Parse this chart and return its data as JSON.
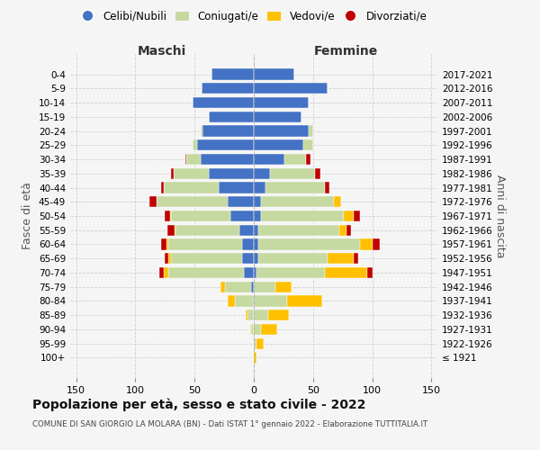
{
  "age_groups": [
    "100+",
    "95-99",
    "90-94",
    "85-89",
    "80-84",
    "75-79",
    "70-74",
    "65-69",
    "60-64",
    "55-59",
    "50-54",
    "45-49",
    "40-44",
    "35-39",
    "30-34",
    "25-29",
    "20-24",
    "15-19",
    "10-14",
    "5-9",
    "0-4"
  ],
  "birth_years": [
    "≤ 1921",
    "1922-1926",
    "1927-1931",
    "1932-1936",
    "1937-1941",
    "1942-1946",
    "1947-1951",
    "1952-1956",
    "1957-1961",
    "1962-1966",
    "1967-1971",
    "1972-1976",
    "1977-1981",
    "1982-1986",
    "1987-1991",
    "1992-1996",
    "1997-2001",
    "2002-2006",
    "2007-2011",
    "2012-2016",
    "2017-2021"
  ],
  "colors": {
    "celibe": "#4472c4",
    "coniugato": "#c5d9a0",
    "vedovo": "#ffc000",
    "divorziato": "#c00000"
  },
  "maschi": {
    "celibe": [
      0,
      0,
      0,
      0,
      1,
      2,
      8,
      10,
      10,
      12,
      20,
      22,
      30,
      38,
      45,
      48,
      43,
      38,
      52,
      44,
      36
    ],
    "coniugato": [
      0,
      0,
      2,
      5,
      15,
      22,
      64,
      60,
      62,
      54,
      50,
      60,
      46,
      30,
      12,
      4,
      2,
      0,
      0,
      0,
      0
    ],
    "vedovo": [
      0,
      0,
      1,
      2,
      6,
      4,
      4,
      2,
      2,
      1,
      1,
      0,
      0,
      0,
      0,
      0,
      0,
      0,
      0,
      0,
      0
    ],
    "divorziato": [
      0,
      0,
      0,
      0,
      0,
      0,
      4,
      3,
      4,
      6,
      4,
      6,
      2,
      2,
      1,
      0,
      0,
      0,
      0,
      0,
      0
    ]
  },
  "femmine": {
    "celibe": [
      0,
      0,
      0,
      0,
      0,
      0,
      2,
      4,
      4,
      4,
      6,
      6,
      10,
      14,
      26,
      42,
      46,
      40,
      46,
      62,
      34
    ],
    "coniugato": [
      0,
      2,
      6,
      12,
      28,
      18,
      58,
      58,
      86,
      68,
      70,
      62,
      50,
      38,
      18,
      8,
      4,
      0,
      0,
      0,
      0
    ],
    "vedovo": [
      2,
      6,
      14,
      18,
      30,
      14,
      36,
      22,
      10,
      6,
      8,
      6,
      0,
      0,
      0,
      0,
      0,
      0,
      0,
      0,
      0
    ],
    "divorziato": [
      0,
      0,
      0,
      0,
      0,
      0,
      4,
      4,
      6,
      4,
      6,
      0,
      4,
      4,
      4,
      0,
      0,
      0,
      0,
      0,
      0
    ]
  },
  "xlim": 155,
  "title": "Popolazione per età, sesso e stato civile - 2022",
  "subtitle": "COMUNE DI SAN GIORGIO LA MOLARA (BN) - Dati ISTAT 1° gennaio 2022 - Elaborazione TUTTITALIA.IT",
  "xlabel_left": "Maschi",
  "xlabel_right": "Femmine",
  "ylabel_left": "Fasce di età",
  "ylabel_right": "Anni di nascita",
  "legend_labels": [
    "Celibi/Nubili",
    "Coniugati/e",
    "Vedovi/e",
    "Divorziati/e"
  ],
  "bg_color": "#f5f5f5",
  "grid_color": "#cccccc"
}
